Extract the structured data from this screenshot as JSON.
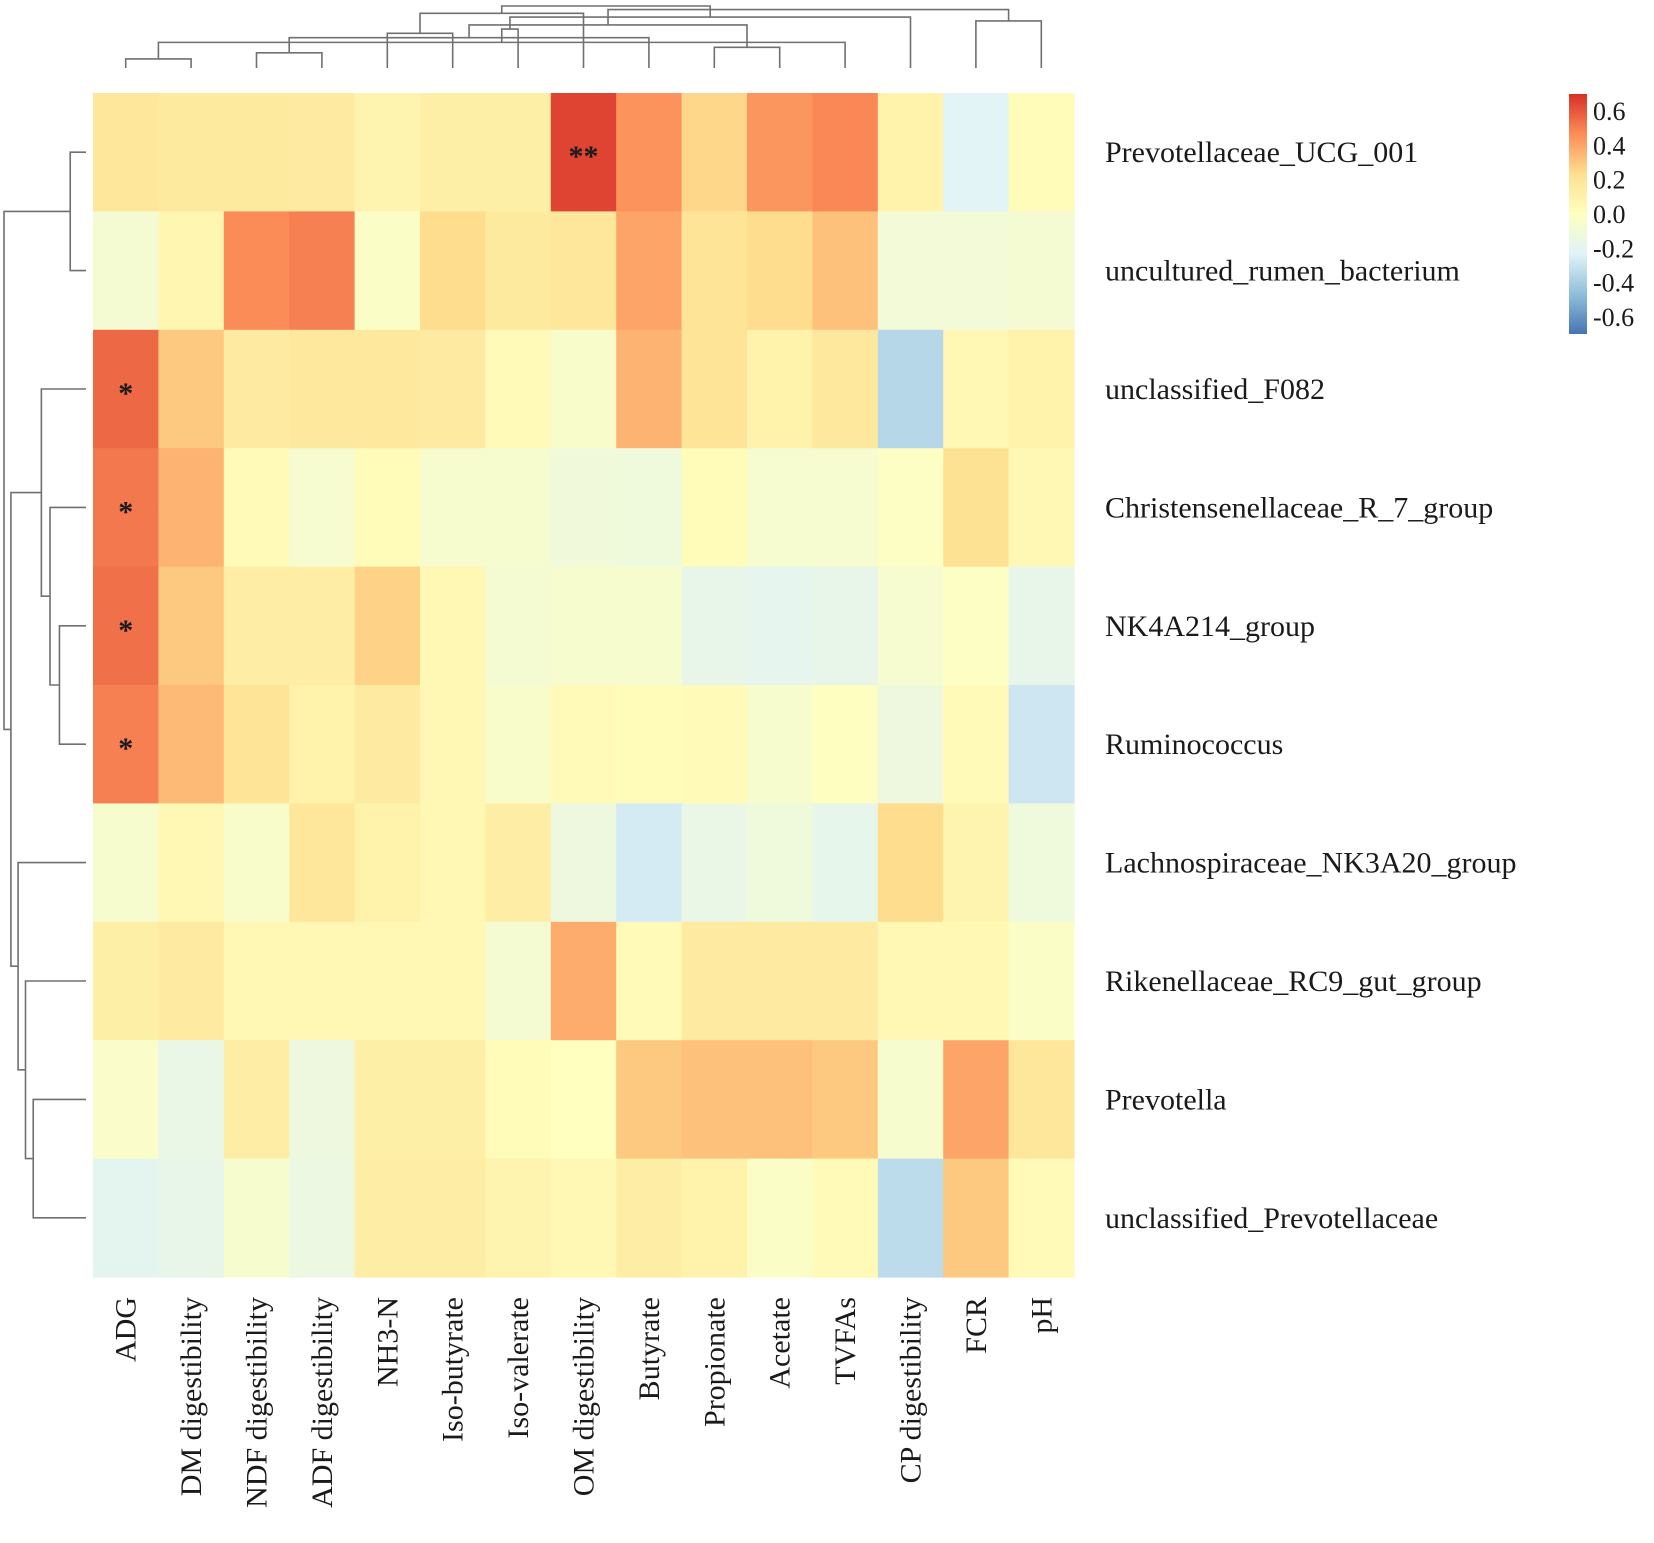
{
  "chart_data": {
    "type": "heatmap",
    "title": "",
    "rows": [
      "Prevotellaceae_UCG_001",
      "uncultured_rumen_bacterium",
      "unclassified_F082",
      "Christensenellaceae_R_7_group",
      "NK4A214_group",
      "Ruminococcus",
      "Lachnospiraceae_NK3A20_group",
      "Rikenellaceae_RC9_gut_group",
      "Prevotella",
      "unclassified_Prevotellaceae"
    ],
    "columns": [
      "ADG",
      "DM digestibility",
      "NDF digestibility",
      "ADF digestibility",
      "NH3-N",
      "Iso-butyrate",
      "Iso-valerate",
      "OM digestibility",
      "Butyrate",
      "Propionate",
      "Acetate",
      "TVFAs",
      "CP digestibility",
      "FCR",
      "pH"
    ],
    "values": [
      [
        0.18,
        0.16,
        0.16,
        0.15,
        0.08,
        0.12,
        0.12,
        0.65,
        0.45,
        0.26,
        0.44,
        0.48,
        0.1,
        -0.22,
        0.03
      ],
      [
        -0.08,
        0.07,
        0.47,
        0.5,
        -0.03,
        0.24,
        0.16,
        0.18,
        0.4,
        0.2,
        0.24,
        0.32,
        -0.1,
        -0.1,
        -0.08
      ],
      [
        0.56,
        0.3,
        0.15,
        0.17,
        0.17,
        0.15,
        0.04,
        -0.05,
        0.36,
        0.2,
        0.1,
        0.17,
        -0.36,
        0.06,
        0.1
      ],
      [
        0.52,
        0.36,
        0.04,
        -0.07,
        0.03,
        -0.06,
        -0.06,
        -0.11,
        -0.12,
        0.03,
        -0.07,
        -0.07,
        -0.02,
        0.22,
        0.05
      ],
      [
        0.54,
        0.3,
        0.13,
        0.13,
        0.27,
        0.05,
        -0.08,
        -0.06,
        -0.06,
        -0.17,
        -0.19,
        -0.17,
        -0.07,
        -0.02,
        -0.17
      ],
      [
        0.5,
        0.34,
        0.2,
        0.1,
        0.15,
        0.05,
        -0.05,
        0.04,
        0.03,
        0.04,
        -0.06,
        -0.01,
        -0.13,
        0.04,
        -0.29
      ],
      [
        -0.06,
        0.05,
        -0.05,
        0.18,
        0.1,
        0.06,
        0.13,
        -0.13,
        -0.27,
        -0.16,
        -0.12,
        -0.18,
        0.24,
        0.08,
        -0.12
      ],
      [
        0.12,
        0.15,
        0.05,
        0.06,
        0.05,
        0.05,
        -0.08,
        0.38,
        0.04,
        0.15,
        0.15,
        0.15,
        0.05,
        0.05,
        -0.03
      ],
      [
        -0.04,
        -0.16,
        0.13,
        -0.13,
        0.12,
        0.12,
        0.03,
        0.0,
        0.3,
        0.32,
        0.32,
        0.3,
        -0.06,
        0.4,
        0.18
      ],
      [
        -0.2,
        -0.17,
        -0.06,
        -0.14,
        0.13,
        0.13,
        0.08,
        0.05,
        0.13,
        0.1,
        -0.03,
        0.04,
        -0.34,
        0.3,
        0.04
      ]
    ],
    "annotations": [
      {
        "row": 0,
        "col": 7,
        "text": "**"
      },
      {
        "row": 2,
        "col": 0,
        "text": "*"
      },
      {
        "row": 3,
        "col": 0,
        "text": "*"
      },
      {
        "row": 4,
        "col": 0,
        "text": "*"
      },
      {
        "row": 5,
        "col": 0,
        "text": "*"
      }
    ],
    "color_range": [
      -0.7,
      0.7
    ],
    "colors": [
      "#4575b4",
      "#91bfdb",
      "#e0f3f8",
      "#ffffbf",
      "#fee090",
      "#fc8d59",
      "#d73027"
    ],
    "legend": {
      "position": "top-right",
      "ticks": [
        "0.6",
        "0.4",
        "0.2",
        "0.0",
        "-0.2",
        "-0.4",
        "-0.6"
      ],
      "tick_values": [
        0.6,
        0.4,
        0.2,
        0.0,
        -0.2,
        -0.4,
        -0.6
      ]
    },
    "column_dendrogram": [
      [
        0,
        1
      ],
      [
        2,
        3
      ],
      [
        9,
        10
      ],
      [
        15,
        11
      ],
      [
        16,
        8
      ],
      [
        4,
        5
      ],
      [
        18,
        6
      ],
      [
        19,
        17
      ],
      [
        14,
        13
      ],
      [
        21,
        12
      ],
      [
        20,
        7
      ],
      [
        23,
        22
      ],
      [
        24,
        25
      ]
    ],
    "row_dendrogram": [
      [
        0,
        1
      ],
      [
        4,
        5
      ],
      [
        11,
        3
      ],
      [
        12,
        2
      ],
      [
        8,
        9
      ],
      [
        14,
        7
      ],
      [
        15,
        6
      ],
      [
        13,
        16
      ],
      [
        10,
        17
      ]
    ]
  }
}
